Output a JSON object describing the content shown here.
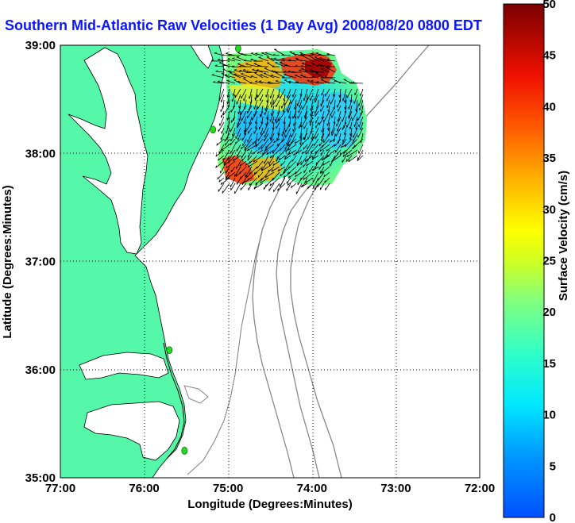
{
  "title": "Southern Mid-Atlantic Raw Velocities (1 Day Avg) 2008/08/20 0800 EDT",
  "map": {
    "xlabel": "Longitude (Degrees:Minutes)",
    "ylabel": "Latitude (Degrees:Minutes)",
    "lon_range": [
      -77,
      -72
    ],
    "lat_range": [
      35,
      39
    ],
    "lon_ticks": [
      "77:00",
      "76:00",
      "75:00",
      "74:00",
      "73:00",
      "72:00"
    ],
    "lat_ticks": [
      "39:00",
      "38:00",
      "37:00",
      "36:00",
      "35:00"
    ],
    "grid": true,
    "land_color": "#55f7a8",
    "water_color": "#ffffff",
    "bathymetry_color": "#888888",
    "stations": [
      {
        "lon": -74.88,
        "lat": 38.97
      },
      {
        "lon": -75.18,
        "lat": 38.22
      },
      {
        "lon": -75.7,
        "lat": 36.18
      },
      {
        "lon": -75.52,
        "lat": 35.25
      }
    ],
    "station_color": "#22dd22"
  },
  "colorbar": {
    "label": "Surface Velocity (cm/s)",
    "min": 0,
    "max": 50,
    "ticks": [
      "0",
      "5",
      "10",
      "15",
      "20",
      "25",
      "30",
      "35",
      "40",
      "45",
      "50"
    ],
    "colors": [
      "#0050ff",
      "#00a0ff",
      "#00e0ff",
      "#20ffd0",
      "#70ff80",
      "#c0ff30",
      "#ffff00",
      "#ffc000",
      "#ff7000",
      "#ff2000",
      "#c00000",
      "#800000"
    ]
  }
}
